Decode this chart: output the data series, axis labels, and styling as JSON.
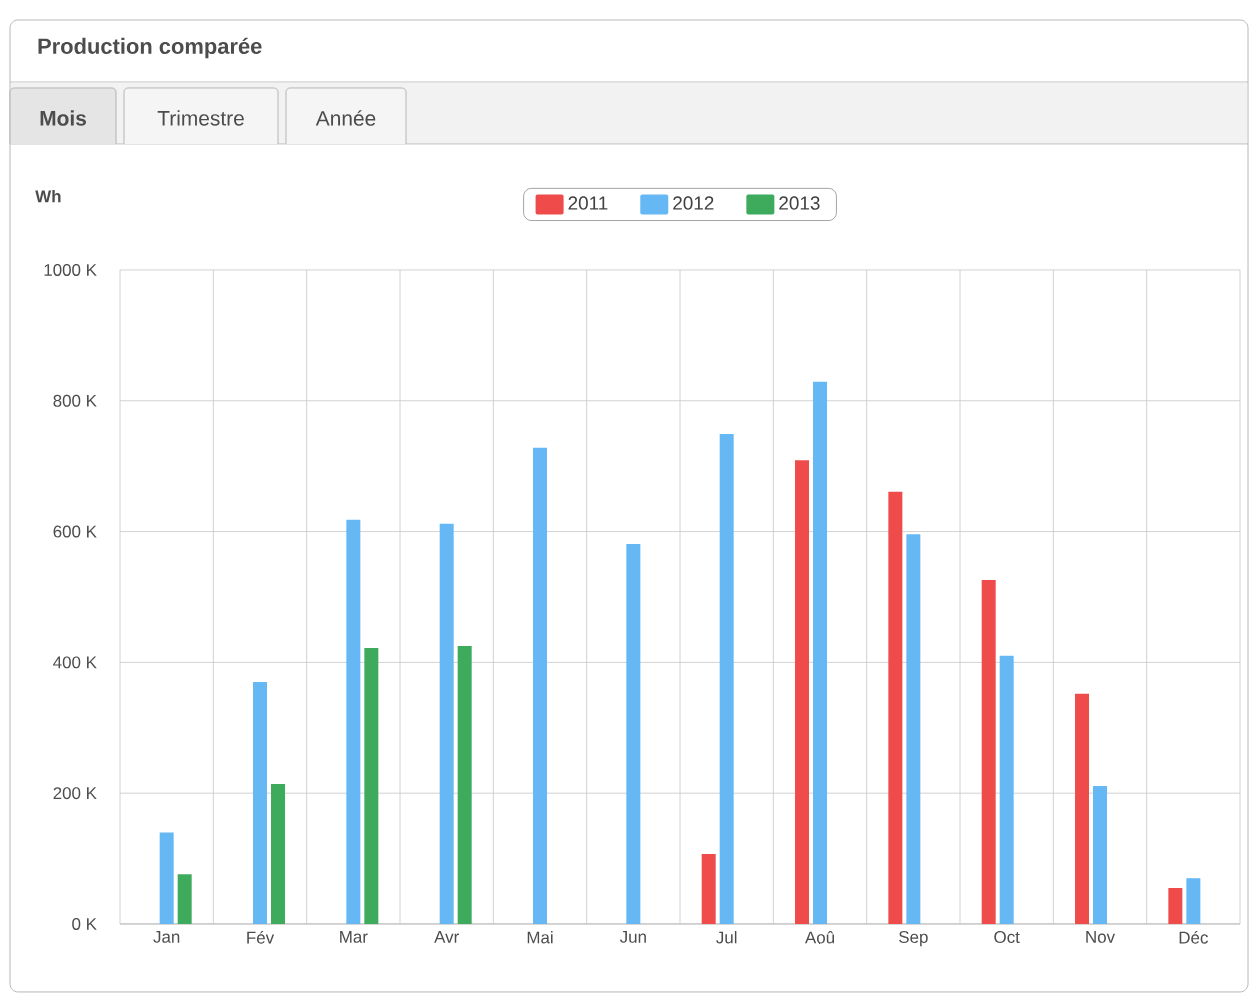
{
  "chart_data": {
    "type": "bar",
    "title": "Production comparée",
    "ylabel": "Wh",
    "annotations": [
      "Mois",
      "Trimestre",
      "Année"
    ],
    "categories": [
      "Jan",
      "Fév",
      "Mar",
      "Avr",
      "Mai",
      "Jun",
      "Jul",
      "Aoû",
      "Sep",
      "Oct",
      "Nov",
      "Déc"
    ],
    "series": [
      {
        "name": "2011",
        "color": "#f04b4b",
        "values": [
          null,
          null,
          null,
          null,
          null,
          null,
          107000,
          709000,
          661000,
          526000,
          352000,
          55000
        ]
      },
      {
        "name": "2012",
        "color": "#66b8f5",
        "values": [
          140000,
          370000,
          618000,
          612000,
          728000,
          581000,
          749000,
          829000,
          596000,
          410000,
          211000,
          70000
        ]
      },
      {
        "name": "2013",
        "color": "#3daa5c",
        "values": [
          76000,
          214000,
          422000,
          425000,
          null,
          null,
          null,
          null,
          null,
          null,
          null,
          null
        ]
      }
    ],
    "ylim": [
      0,
      1000000
    ],
    "yticks": [
      {
        "value": 0,
        "label": "0 K"
      },
      {
        "value": 200000,
        "label": "200 K"
      },
      {
        "value": 400000,
        "label": "400 K"
      },
      {
        "value": 600000,
        "label": "600 K"
      },
      {
        "value": 800000,
        "label": "800 K"
      },
      {
        "value": 1000000,
        "label": "1000 K"
      }
    ],
    "grid": true,
    "legend": "top"
  }
}
